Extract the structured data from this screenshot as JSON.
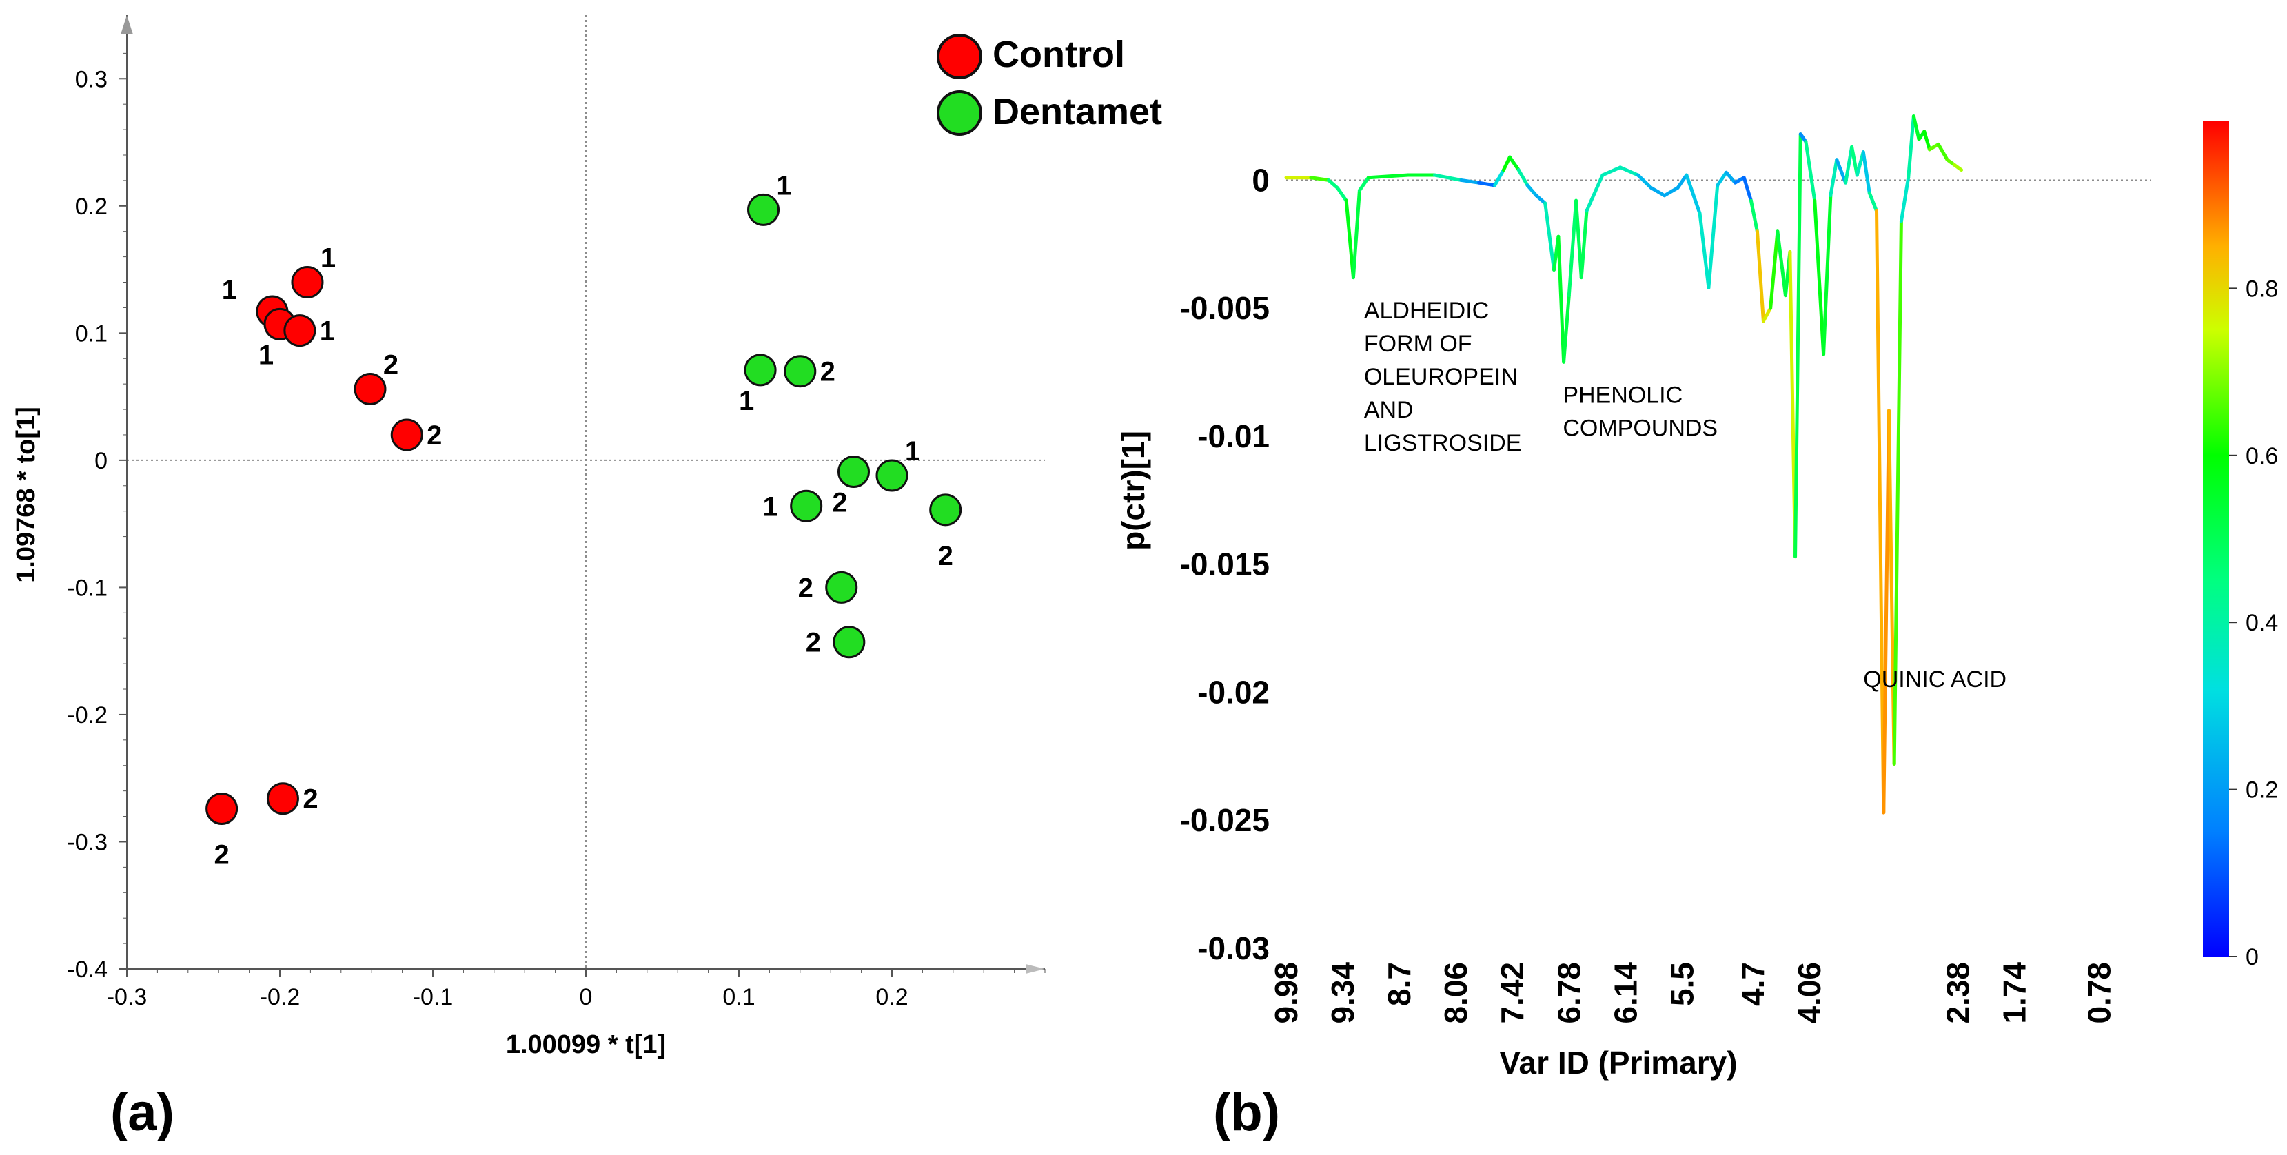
{
  "colors": {
    "control": "#ff0000",
    "dentamet": "#22dd22",
    "axis": "#555555",
    "zero_line": "#8c8c8c"
  },
  "chart_data": [
    {
      "type": "scatter",
      "panel_label": "(a)",
      "xlabel": "1.00099 * t[1]",
      "ylabel": "1.09768 * to[1]",
      "xlim": [
        -0.3,
        0.3
      ],
      "ylim": [
        -0.4,
        0.35
      ],
      "xticks": [
        -0.3,
        -0.2,
        -0.1,
        0,
        0.1,
        0.2
      ],
      "xtick_labels": [
        "-0.3",
        "-0.2",
        "-0.1",
        "0",
        "0.1",
        "0.2"
      ],
      "yticks": [
        -0.4,
        -0.3,
        -0.2,
        -0.1,
        0,
        0.1,
        0.2,
        0.3
      ],
      "ytick_labels": [
        "-0.4",
        "-0.3",
        "-0.2",
        "-0.1",
        "0",
        "0.1",
        "0.2",
        "0.3"
      ],
      "legend": [
        {
          "name": "Control",
          "color": "#ff0000"
        },
        {
          "name": "Dentamet",
          "color": "#22dd22"
        }
      ],
      "series": [
        {
          "name": "Control",
          "color": "#ff0000",
          "points": [
            {
              "x": -0.205,
              "y": 0.117,
              "label": "1",
              "label_pos": "upper-left"
            },
            {
              "x": -0.2,
              "y": 0.107,
              "label": "1",
              "label_pos": "below-left"
            },
            {
              "x": -0.182,
              "y": 0.14,
              "label": "1",
              "label_pos": "upper-right"
            },
            {
              "x": -0.187,
              "y": 0.102,
              "label": "1",
              "label_pos": "right"
            },
            {
              "x": -0.141,
              "y": 0.056,
              "label": "2",
              "label_pos": "upper-right"
            },
            {
              "x": -0.117,
              "y": 0.02,
              "label": "2",
              "label_pos": "right"
            },
            {
              "x": -0.198,
              "y": -0.266,
              "label": "2",
              "label_pos": "right"
            },
            {
              "x": -0.238,
              "y": -0.274,
              "label": "2",
              "label_pos": "below"
            }
          ]
        },
        {
          "name": "Dentamet",
          "color": "#22dd22",
          "points": [
            {
              "x": 0.116,
              "y": 0.197,
              "label": "1",
              "label_pos": "upper-right"
            },
            {
              "x": 0.114,
              "y": 0.071,
              "label": "1",
              "label_pos": "below-left"
            },
            {
              "x": 0.14,
              "y": 0.07,
              "label": "2",
              "label_pos": "right"
            },
            {
              "x": 0.175,
              "y": -0.009,
              "label": "2",
              "label_pos": "below-left"
            },
            {
              "x": 0.2,
              "y": -0.012,
              "label": "1",
              "label_pos": "upper-right"
            },
            {
              "x": 0.144,
              "y": -0.036,
              "label": "1",
              "label_pos": "left"
            },
            {
              "x": 0.235,
              "y": -0.039,
              "label": "2",
              "label_pos": "below"
            },
            {
              "x": 0.167,
              "y": -0.1,
              "label": "2",
              "label_pos": "left"
            },
            {
              "x": 0.172,
              "y": -0.143,
              "label": "2",
              "label_pos": "left"
            }
          ]
        }
      ]
    },
    {
      "type": "line",
      "panel_label": "(b)",
      "xlabel": "Var ID (Primary)",
      "ylabel": "p(ctr)[1]",
      "xlim": [
        9.98,
        0.2
      ],
      "ylim": [
        -0.03,
        0.003
      ],
      "xticks": [
        9.98,
        9.34,
        8.7,
        8.06,
        7.42,
        6.78,
        6.14,
        5.5,
        4.7,
        4.06,
        2.38,
        1.74,
        0.78
      ],
      "xtick_labels": [
        "9.98",
        "9.34",
        "8.7",
        "8.06",
        "7.42",
        "6.78",
        "6.14",
        "5.5",
        "4.7",
        "4.06",
        "2.38",
        "1.74",
        "0.78"
      ],
      "yticks": [
        0,
        -0.005,
        -0.01,
        -0.015,
        -0.02,
        -0.025,
        -0.03
      ],
      "ytick_labels": [
        "0",
        "-0.005",
        "-0.01",
        "-0.015",
        "-0.02",
        "-0.025",
        "-0.03"
      ],
      "colorbar": {
        "min": 0,
        "max": 1,
        "ticks": [
          "0",
          "0.2",
          "0.4",
          "0.6",
          "0.8"
        ]
      },
      "annotations": [
        {
          "lines": [
            "ALDHEIDIC",
            "FORM OF",
            "OLEUROPEIN",
            "AND",
            "LIGSTROSIDE"
          ],
          "x": 9.1,
          "y": -0.0054
        },
        {
          "lines": [
            "PHENOLIC",
            "COMPOUNDS"
          ],
          "x": 6.85,
          "y": -0.0087
        },
        {
          "lines": [
            "QUINIC ACID"
          ],
          "x": 3.45,
          "y": -0.0198
        }
      ],
      "series": [
        {
          "name": "p(ctr)[1]",
          "points": [
            [
              9.98,
              0.0001,
              0.78
            ],
            [
              9.7,
              0.0001,
              0.75
            ],
            [
              9.5,
              0.0,
              0.55
            ],
            [
              9.4,
              -0.0003,
              0.35
            ],
            [
              9.3,
              -0.0008,
              0.55
            ],
            [
              9.22,
              -0.0038,
              0.6
            ],
            [
              9.15,
              -0.0004,
              0.45
            ],
            [
              9.05,
              0.0001,
              0.5
            ],
            [
              8.6,
              0.0002,
              0.6
            ],
            [
              8.3,
              0.0002,
              0.5
            ],
            [
              8.0,
              0.0,
              0.3
            ],
            [
              7.8,
              -0.0001,
              0.15
            ],
            [
              7.62,
              -0.0002,
              0.1
            ],
            [
              7.52,
              0.0004,
              0.55
            ],
            [
              7.45,
              0.0009,
              0.65
            ],
            [
              7.35,
              0.0004,
              0.5
            ],
            [
              7.25,
              -0.0002,
              0.3
            ],
            [
              7.15,
              -0.0006,
              0.2
            ],
            [
              7.05,
              -0.0009,
              0.25
            ],
            [
              6.95,
              -0.0035,
              0.5
            ],
            [
              6.9,
              -0.0022,
              0.55
            ],
            [
              6.84,
              -0.0071,
              0.55
            ],
            [
              6.78,
              -0.0045,
              0.5
            ],
            [
              6.7,
              -0.0008,
              0.45
            ],
            [
              6.64,
              -0.0038,
              0.55
            ],
            [
              6.58,
              -0.0012,
              0.45
            ],
            [
              6.4,
              0.0002,
              0.3
            ],
            [
              6.2,
              0.0005,
              0.45
            ],
            [
              6.0,
              0.0002,
              0.3
            ],
            [
              5.85,
              -0.0003,
              0.2
            ],
            [
              5.7,
              -0.0006,
              0.25
            ],
            [
              5.55,
              -0.0003,
              0.2
            ],
            [
              5.45,
              0.0002,
              0.25
            ],
            [
              5.3,
              -0.0013,
              0.3
            ],
            [
              5.2,
              -0.0042,
              0.4
            ],
            [
              5.1,
              -0.0002,
              0.3
            ],
            [
              5.0,
              0.0003,
              0.25
            ],
            [
              4.9,
              -0.0001,
              0.2
            ],
            [
              4.8,
              0.0001,
              0.1
            ],
            [
              4.72,
              -0.0008,
              0.15
            ],
            [
              4.65,
              -0.002,
              0.8
            ],
            [
              4.58,
              -0.0055,
              0.85
            ],
            [
              4.5,
              -0.005,
              0.7
            ],
            [
              4.42,
              -0.002,
              0.55
            ],
            [
              4.33,
              -0.0045,
              0.5
            ],
            [
              4.28,
              -0.0028,
              0.55
            ],
            [
              4.22,
              -0.0147,
              0.98
            ],
            [
              4.16,
              0.0018,
              0.05
            ],
            [
              4.1,
              0.0015,
              0.3
            ],
            [
              4.0,
              -0.0008,
              0.55
            ],
            [
              3.9,
              -0.0068,
              0.6
            ],
            [
              3.82,
              -0.0006,
              0.5
            ],
            [
              3.75,
              0.0008,
              0.25
            ],
            [
              3.65,
              -0.0001,
              0.2
            ],
            [
              3.58,
              0.0013,
              0.6
            ],
            [
              3.52,
              0.0002,
              0.3
            ],
            [
              3.45,
              0.0011,
              0.45
            ],
            [
              3.38,
              -0.0005,
              0.1
            ],
            [
              3.3,
              -0.0012,
              0.75
            ],
            [
              3.22,
              -0.0247,
              0.95
            ],
            [
              3.16,
              -0.009,
              0.8
            ],
            [
              3.1,
              -0.0228,
              0.9
            ],
            [
              3.02,
              -0.0016,
              0.4
            ],
            [
              2.94,
              0.0001,
              0.3
            ],
            [
              2.88,
              0.0025,
              0.5
            ],
            [
              2.82,
              0.0016,
              0.6
            ],
            [
              2.76,
              0.0019,
              0.55
            ],
            [
              2.7,
              0.0012,
              0.65
            ],
            [
              2.6,
              0.0014,
              0.7
            ],
            [
              2.5,
              0.0008,
              0.6
            ],
            [
              2.42,
              0.0006,
              0.75
            ],
            [
              2.34,
              0.0004,
              0.7
            ]
          ]
        }
      ]
    }
  ]
}
